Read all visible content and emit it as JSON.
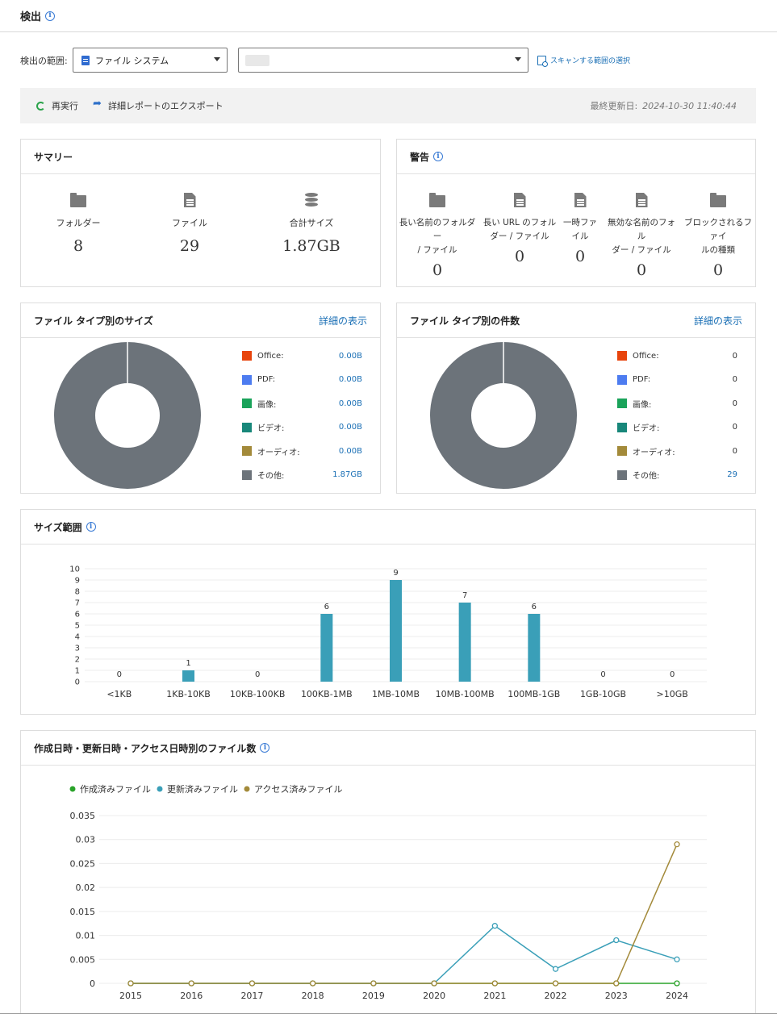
{
  "header": {
    "title": "検出"
  },
  "scope": {
    "label": "検出の範囲:",
    "type_value": "ファイル システム",
    "path_value": "",
    "scan_link": "スキャンする範囲の選択"
  },
  "toolbar": {
    "rerun": "再実行",
    "export": "詳細レポートのエクスポート",
    "updated_label": "最終更新日:",
    "updated_value": "2024-10-30 11:40:44"
  },
  "summary": {
    "title": "サマリー",
    "items": [
      {
        "icon": "folder-icon",
        "label": "フォルダー",
        "value": "8"
      },
      {
        "icon": "file-icon",
        "label": "ファイル",
        "value": "29"
      },
      {
        "icon": "database-icon",
        "label": "合計サイズ",
        "value": "1.87GB"
      }
    ]
  },
  "warnings": {
    "title": "警告",
    "items": [
      {
        "icon": "long-name-folder-icon",
        "label_line1": "長い名前のフォルダー",
        "label_line2": "/ ファイル",
        "value": "0"
      },
      {
        "icon": "long-url-file-icon",
        "label_line1": "長い URL のフォル",
        "label_line2": "ダー / ファイル",
        "value": "0"
      },
      {
        "icon": "temp-file-icon",
        "label_line1": "一時ファ",
        "label_line2": "イル",
        "value": "0"
      },
      {
        "icon": "invalid-name-file-icon",
        "label_line1": "無効な名前のフォル",
        "label_line2": "ダー / ファイル",
        "value": "0"
      },
      {
        "icon": "blocked-folder-icon",
        "label_line1": "ブロックされるファイ",
        "label_line2": "ルの種類",
        "value": "0"
      }
    ]
  },
  "size_by_type": {
    "title": "ファイル タイプ別のサイズ",
    "link": "詳細の表示",
    "legend": [
      {
        "label": "Office:",
        "value": "0.00B",
        "color": "#e8440c"
      },
      {
        "label": "PDF:",
        "value": "0.00B",
        "color": "#4d7cf0"
      },
      {
        "label": "画像:",
        "value": "0.00B",
        "color": "#1aa35a"
      },
      {
        "label": "ビデオ:",
        "value": "0.00B",
        "color": "#18877a"
      },
      {
        "label": "オーディオ:",
        "value": "0.00B",
        "color": "#a38a3a"
      },
      {
        "label": "その他:",
        "value": "1.87GB",
        "color": "#6c737a"
      }
    ]
  },
  "count_by_type": {
    "title": "ファイル タイプ別の件数",
    "link": "詳細の表示",
    "legend": [
      {
        "label": "Office:",
        "value": "0",
        "color": "#e8440c"
      },
      {
        "label": "PDF:",
        "value": "0",
        "color": "#4d7cf0"
      },
      {
        "label": "画像:",
        "value": "0",
        "color": "#1aa35a"
      },
      {
        "label": "ビデオ:",
        "value": "0",
        "color": "#18877a"
      },
      {
        "label": "オーディオ:",
        "value": "0",
        "color": "#a38a3a"
      },
      {
        "label": "その他:",
        "value": "29",
        "color": "#6c737a"
      }
    ]
  },
  "size_range": {
    "title": "サイズ範囲"
  },
  "timeline": {
    "title": "作成日時・更新日時・アクセス日時別のファイル数"
  },
  "chart_data": [
    {
      "type": "pie",
      "title": "ファイル タイプ別のサイズ",
      "categories": [
        "Office",
        "PDF",
        "画像",
        "ビデオ",
        "オーディオ",
        "その他"
      ],
      "values": [
        0,
        0,
        0,
        0,
        0,
        1.87
      ],
      "colors": [
        "#e8440c",
        "#4d7cf0",
        "#1aa35a",
        "#18877a",
        "#a38a3a",
        "#6c737a"
      ]
    },
    {
      "type": "pie",
      "title": "ファイル タイプ別の件数",
      "categories": [
        "Office",
        "PDF",
        "画像",
        "ビデオ",
        "オーディオ",
        "その他"
      ],
      "values": [
        0,
        0,
        0,
        0,
        0,
        29
      ],
      "colors": [
        "#e8440c",
        "#4d7cf0",
        "#1aa35a",
        "#18877a",
        "#a38a3a",
        "#6c737a"
      ]
    },
    {
      "type": "bar",
      "title": "サイズ範囲",
      "categories": [
        "<1KB",
        "1KB-10KB",
        "10KB-100KB",
        "100KB-1MB",
        "1MB-10MB",
        "10MB-100MB",
        "100MB-1GB",
        "1GB-10GB",
        ">10GB"
      ],
      "values": [
        0,
        1,
        0,
        6,
        9,
        7,
        6,
        0,
        0
      ],
      "ylim": [
        0,
        10
      ],
      "yticks": [
        0,
        1,
        2,
        3,
        4,
        5,
        6,
        7,
        8,
        9,
        10
      ],
      "color": "#3a9fb8",
      "grid": true
    },
    {
      "type": "line",
      "title": "作成日時・更新日時・アクセス日時別のファイル数",
      "x": [
        "2015",
        "2016",
        "2017",
        "2018",
        "2019",
        "2020",
        "2021",
        "2022",
        "2023",
        "2024"
      ],
      "ylim": [
        0,
        0.035
      ],
      "yticks": [
        "0",
        "0.005",
        "0.01",
        "0.015",
        "0.02",
        "0.025",
        "0.03",
        "0.035"
      ],
      "legend_position": "top-left",
      "grid": true,
      "series": [
        {
          "name": "作成済みファイル",
          "color": "#2aa32a",
          "values": [
            0,
            0,
            0,
            0,
            0,
            0,
            0,
            0,
            0,
            0
          ]
        },
        {
          "name": "更新済みファイル",
          "color": "#3a9fb8",
          "values": [
            0,
            0,
            0,
            0,
            0,
            0,
            0.012,
            0.003,
            0.009,
            0.005
          ]
        },
        {
          "name": "アクセス済みファイル",
          "color": "#a38a3a",
          "values": [
            0,
            0,
            0,
            0,
            0,
            0,
            0,
            0,
            0,
            0.029
          ]
        }
      ]
    }
  ]
}
